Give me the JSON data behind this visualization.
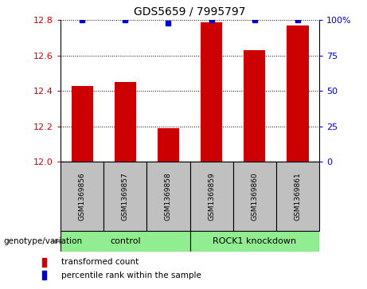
{
  "title": "GDS5659 / 7995797",
  "samples": [
    "GSM1369856",
    "GSM1369857",
    "GSM1369858",
    "GSM1369859",
    "GSM1369860",
    "GSM1369861"
  ],
  "red_values": [
    12.43,
    12.45,
    12.19,
    12.79,
    12.63,
    12.77
  ],
  "blue_values": [
    100,
    100,
    98,
    100,
    100,
    100
  ],
  "ylim_left": [
    12.0,
    12.8
  ],
  "ylim_right": [
    0,
    100
  ],
  "yticks_left": [
    12.0,
    12.2,
    12.4,
    12.6,
    12.8
  ],
  "yticks_right": [
    0,
    25,
    50,
    75,
    100
  ],
  "bar_color": "#CC0000",
  "dot_color": "#0000CC",
  "bar_width": 0.5,
  "sample_box_color": "#C0C0C0",
  "control_color": "#90EE90",
  "legend_red_label": "transformed count",
  "legend_blue_label": "percentile rank within the sample",
  "genotype_label": "genotype/variation",
  "control_label": "control",
  "knockdown_label": "ROCK1 knockdown"
}
